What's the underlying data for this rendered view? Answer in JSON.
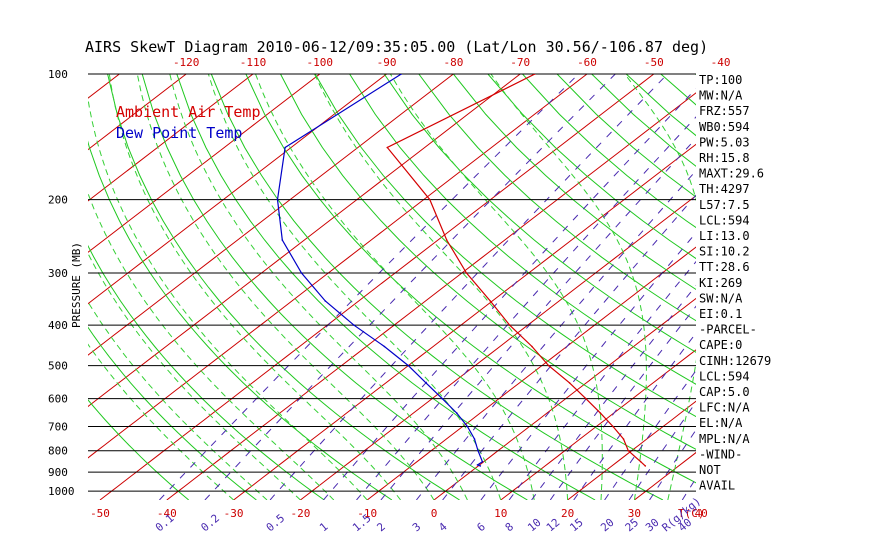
{
  "title": "AIRS SkewT Diagram 2010-06-12/09:35:05.00 (Lat/Lon 30.56/-106.87 deg)",
  "colors": {
    "temperature": "#d40000",
    "dewpoint": "#0000c8",
    "isotherm": "#cc0000",
    "dry_adiabat": "#1fc81f",
    "moist_adiabat": "#35d035",
    "mixing_ratio": "#4a2bb0",
    "axis_text": "#cc0000",
    "mixing_text": "#4a2bb0"
  },
  "legend": {
    "ambient": "Ambient Air Temp",
    "dewpoint": "Dew Point Temp"
  },
  "chart_data": {
    "type": "line",
    "ylabel": "PRESSURE (MB)",
    "y_scale": "log",
    "ylim": [
      1050,
      100
    ],
    "xlim_bottom": [
      -52,
      50
    ],
    "pressure_ticks": [
      100,
      200,
      300,
      400,
      500,
      600,
      700,
      800,
      900,
      1000
    ],
    "top_axis_ticks": [
      -120,
      -110,
      -100,
      -90,
      -80,
      -70,
      -60,
      -50,
      -40
    ],
    "bottom_axis_ticks": [
      -50,
      -40,
      -30,
      -20,
      -10,
      0,
      10,
      20,
      30,
      40
    ],
    "bottom_axis_unit": "T(C)",
    "mixing_ratio_ticks": [
      "0.1",
      "0.2",
      "0.5",
      "1",
      "1.5",
      "2",
      "3",
      "4",
      "6",
      "8",
      "10",
      "12",
      "15",
      "20",
      "25",
      "30",
      "40"
    ],
    "mixing_ratio_unit": "R(g/kg)",
    "series": [
      {
        "name": "Ambient Air Temp",
        "pressure": [
          100,
          150,
          200,
          250,
          300,
          350,
          400,
          450,
          500,
          550,
          600,
          650,
          700,
          750,
          800,
          850,
          870
        ],
        "temperature": [
          -67.8,
          -75.6,
          -59.1,
          -48.7,
          -39.3,
          -30.3,
          -22.7,
          -15.2,
          -9.0,
          -2.5,
          3.0,
          8.0,
          12.5,
          16.5,
          19.5,
          23.5,
          25.0
        ]
      },
      {
        "name": "Dew Point Temp",
        "pressure": [
          100,
          150,
          200,
          250,
          300,
          350,
          400,
          450,
          500,
          550,
          600,
          650,
          700,
          750,
          800,
          850,
          865,
          870
        ],
        "temperature": [
          -87.8,
          -90.9,
          -81.9,
          -73.3,
          -64.0,
          -55.0,
          -46.0,
          -37.3,
          -30.0,
          -24.0,
          -18.5,
          -13.5,
          -9.3,
          -5.8,
          -3.0,
          -0.2,
          -0.3,
          0.3
        ]
      }
    ]
  },
  "indices": [
    "TP:100",
    "MW:N/A",
    "FRZ:557",
    "WB0:594",
    "PW:5.03",
    "RH:15.8",
    "MAXT:29.6",
    "TH:4297",
    "L57:7.5",
    "LCL:594",
    "LI:13.0",
    "SI:10.2",
    "TT:28.6",
    "KI:269",
    "SW:N/A",
    "EI:0.1",
    "-PARCEL-",
    "CAPE:0",
    "CINH:12679",
    "LCL:594",
    "CAP:5.0",
    "LFC:N/A",
    "EL:N/A",
    "MPL:N/A",
    "-WIND-",
    "NOT",
    "AVAIL"
  ]
}
